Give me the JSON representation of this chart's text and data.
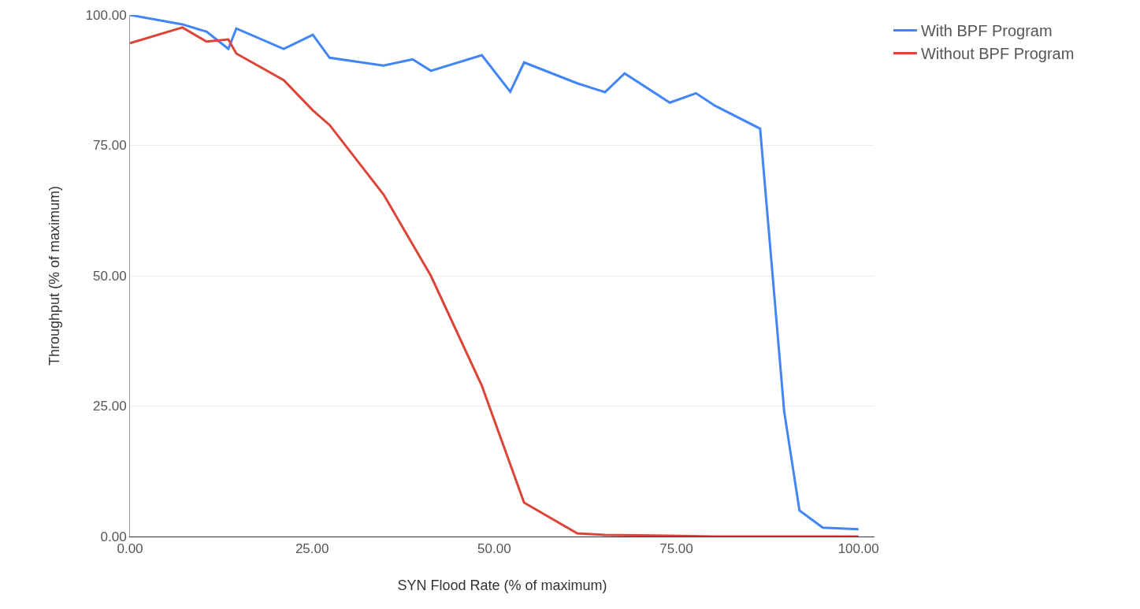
{
  "chart_data": {
    "type": "line",
    "xlabel": "SYN Flood Rate (% of maximum)",
    "ylabel": "Throughput (% of maximum)",
    "xlim": [
      0,
      102.2
    ],
    "ylim": [
      0,
      100
    ],
    "xticks": [
      {
        "value": 0,
        "label": "0.00"
      },
      {
        "value": 25,
        "label": "25.00"
      },
      {
        "value": 50,
        "label": "50.00"
      },
      {
        "value": 75,
        "label": "75.00"
      },
      {
        "value": 100,
        "label": "100.00"
      }
    ],
    "yticks": [
      {
        "value": 0,
        "label": "0.00"
      },
      {
        "value": 25,
        "label": "25.00"
      },
      {
        "value": 50,
        "label": "50.00"
      },
      {
        "value": 75,
        "label": "75.00"
      },
      {
        "value": 100,
        "label": "100.00"
      }
    ],
    "grid": "y",
    "legend": "top right",
    "marker": "none",
    "line_style": "solid",
    "series": [
      {
        "name": "With BPF Program",
        "color": "#4285f4",
        "x": [
          0,
          7.2,
          10.5,
          13.5,
          14.6,
          21.1,
          25.1,
          27.4,
          34.8,
          38.8,
          41.3,
          48.3,
          52.2,
          54.1,
          61.4,
          65.2,
          67.9,
          74.1,
          77.7,
          80.3,
          86.5,
          89.8,
          91.9,
          95.1,
          100
        ],
        "values": [
          100,
          98.2,
          96.8,
          93.5,
          97.4,
          93.5,
          96.2,
          91.8,
          90.3,
          91.5,
          89.3,
          92.3,
          85.3,
          90.9,
          86.9,
          85.2,
          88.8,
          83.2,
          85,
          82.6,
          78.2,
          24,
          5,
          1.7,
          1.4
        ]
      },
      {
        "name": "Without BPF Program",
        "color": "#db4437",
        "x": [
          0,
          7.2,
          10.5,
          13.5,
          14.6,
          21.1,
          25.1,
          27.4,
          34.8,
          38.8,
          41.3,
          48.3,
          54.1,
          61.4,
          65.2,
          74.1,
          80.3,
          100
        ],
        "values": [
          94.6,
          97.6,
          94.9,
          95.3,
          92.6,
          87.5,
          81.7,
          78.9,
          65.6,
          56,
          50,
          28.9,
          6.5,
          0.6,
          0.3,
          0.15,
          0,
          0
        ]
      }
    ]
  }
}
